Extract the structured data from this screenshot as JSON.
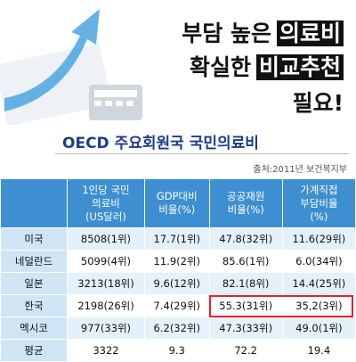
{
  "header": {
    "title_lines": [
      {
        "plain": "부담 높은",
        "boxed": "의료비"
      },
      {
        "plain": "확실한",
        "boxed": "비교추천"
      },
      {
        "plain": "필요!",
        "boxed": null
      }
    ],
    "subtitle": "OECD 주요회원국 국민의료비",
    "source": "출처:2011년 보건복지부"
  },
  "table": {
    "columns": [
      [
        "1인당 국민",
        "의료비",
        "(US달러)"
      ],
      [
        "GDP대비",
        "비율(%)"
      ],
      [
        "공공재원",
        "비율(%)"
      ],
      [
        "가계직접",
        "부담비율",
        "(%)"
      ]
    ],
    "rows": [
      [
        "미국",
        "8508(1위)",
        "17.7(1위)",
        "47.8(32위)",
        "11.6(29위)"
      ],
      [
        "네덜란드",
        "5099(4위)",
        "11.9(2위)",
        "85.6(1위)",
        "6.0(34위)"
      ],
      [
        "일본",
        "3213(18위)",
        "9.6(12위)",
        "82.1(8위)",
        "14.4(25위)"
      ],
      [
        "한국",
        "2198(26위)",
        "7.4(29위)",
        "55.3(31위)",
        "35,2(3위)"
      ],
      [
        "멕시코",
        "977(33위)",
        "6.2(32위)",
        "47.3(33위)",
        "49.0(1위)"
      ],
      [
        "평균",
        "3322",
        "9.3",
        "72.2",
        "19.4"
      ]
    ]
  }
}
